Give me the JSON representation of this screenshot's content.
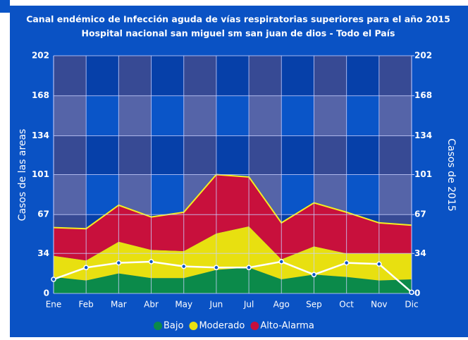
{
  "chart_data": {
    "type": "stacked_area",
    "title": "Canal endémico de Infección aguda de vías respiratorias superiores para el año 2015",
    "subtitle": "Hospital nacional san miguel  sm san juan de dios - Todo el País",
    "ylabel": "Casos de las areas",
    "y2label": "Casos de 2015",
    "categories": [
      "Ene",
      "Feb",
      "Mar",
      "Abr",
      "May",
      "Jun",
      "Jul",
      "Ago",
      "Sep",
      "Oct",
      "Nov",
      "Dic"
    ],
    "series": [
      {
        "name": "Bajo",
        "color": "#0b8a4a",
        "values": [
          14,
          11,
          17,
          13,
          13,
          20,
          22,
          12,
          16,
          14,
          11,
          12
        ]
      },
      {
        "name": "Moderado",
        "color": "#e8e010",
        "values": [
          18,
          17,
          27,
          24,
          23,
          31,
          35,
          17,
          24,
          20,
          23,
          22
        ]
      },
      {
        "name": "Alto-Alarma",
        "color": "#c8103c",
        "values": [
          24,
          27,
          31,
          28,
          33,
          50,
          42,
          31,
          37,
          35,
          26,
          24
        ]
      },
      {
        "color": "#ffffff",
        "axis": "y2",
        "values": [
          12,
          22,
          26,
          27,
          23,
          22,
          22,
          27,
          16,
          26,
          25,
          1
        ]
      }
    ],
    "ylim": [
      0,
      202
    ],
    "yticks": [
      0,
      34,
      67,
      101,
      134,
      168,
      202
    ],
    "y2lim": [
      0,
      202
    ],
    "y2ticks": [
      0,
      34,
      67,
      101,
      134,
      168,
      202
    ],
    "grid": true,
    "legend": "bottom"
  }
}
